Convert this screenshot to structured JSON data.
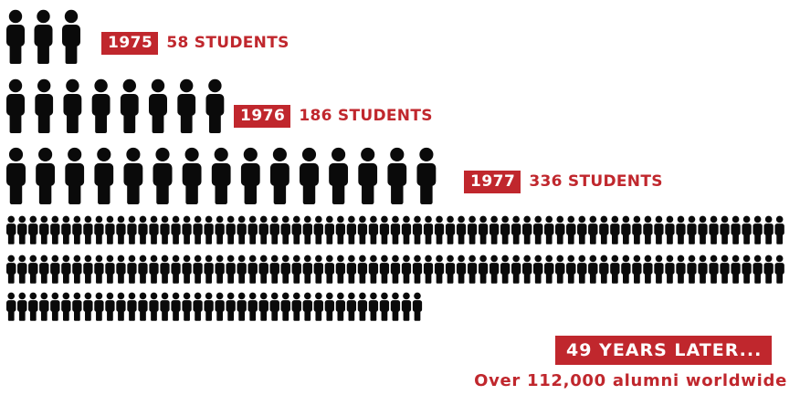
{
  "colors": {
    "accent": "#c0272d",
    "figure": "#0a0a0a",
    "background": "#ffffff"
  },
  "icon": "person-icon",
  "chart_data": {
    "type": "pictogram",
    "rows": [
      {
        "year": "1975",
        "label": "58 STUDENTS",
        "value": 58,
        "icons": 3
      },
      {
        "year": "1976",
        "label": "186 STUDENTS",
        "value": 186,
        "icons": 8
      },
      {
        "year": "1977",
        "label": "336 STUDENTS",
        "value": 336,
        "icons": 15
      },
      {
        "year": "",
        "label": "49 YEARS LATER...",
        "value": 112000,
        "icons": 180
      }
    ],
    "headline": "49 YEARS LATER...",
    "subtitle": "Over 112,000 alumni worldwide"
  }
}
